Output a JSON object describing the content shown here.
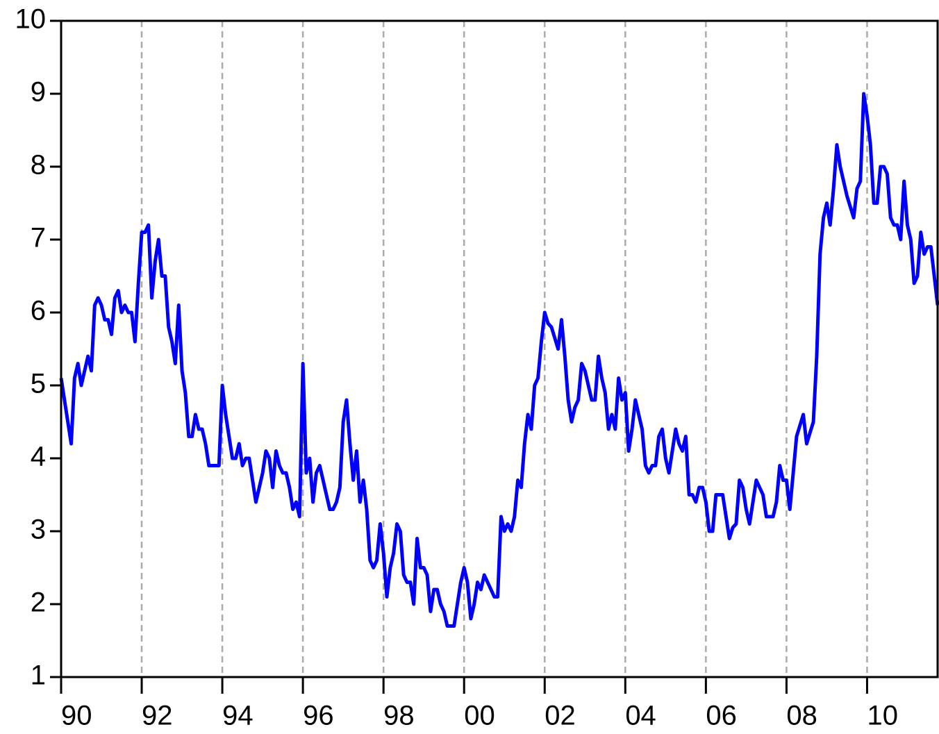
{
  "chart_data": {
    "type": "line",
    "color": "#0000ff",
    "grid": true,
    "xlim": [
      1990,
      2011.75
    ],
    "ylim": [
      1,
      10
    ],
    "yticks": [
      1,
      2,
      3,
      4,
      5,
      6,
      7,
      8,
      9,
      10
    ],
    "xticks": [
      {
        "value": 1990,
        "label": "90"
      },
      {
        "value": 1992,
        "label": "92"
      },
      {
        "value": 1994,
        "label": "94"
      },
      {
        "value": 1996,
        "label": "96"
      },
      {
        "value": 1998,
        "label": "98"
      },
      {
        "value": 2000,
        "label": "00"
      },
      {
        "value": 2002,
        "label": "02"
      },
      {
        "value": 2004,
        "label": "04"
      },
      {
        "value": 2006,
        "label": "06"
      },
      {
        "value": 2008,
        "label": "08"
      },
      {
        "value": 2010,
        "label": "10"
      }
    ],
    "x": [
      1990,
      1990.083,
      1990.167,
      1990.25,
      1990.333,
      1990.417,
      1990.5,
      1990.583,
      1990.667,
      1990.75,
      1990.833,
      1990.917,
      1991,
      1991.083,
      1991.167,
      1991.25,
      1991.333,
      1991.417,
      1991.5,
      1991.583,
      1991.667,
      1991.75,
      1991.833,
      1991.917,
      1992,
      1992.083,
      1992.167,
      1992.25,
      1992.333,
      1992.417,
      1992.5,
      1992.583,
      1992.667,
      1992.75,
      1992.833,
      1992.917,
      1993,
      1993.083,
      1993.167,
      1993.25,
      1993.333,
      1993.417,
      1993.5,
      1993.583,
      1993.667,
      1993.75,
      1993.833,
      1993.917,
      1994,
      1994.083,
      1994.167,
      1994.25,
      1994.333,
      1994.417,
      1994.5,
      1994.583,
      1994.667,
      1994.75,
      1994.833,
      1994.917,
      1995,
      1995.083,
      1995.167,
      1995.25,
      1995.333,
      1995.417,
      1995.5,
      1995.583,
      1995.667,
      1995.75,
      1995.833,
      1995.917,
      1996,
      1996.083,
      1996.167,
      1996.25,
      1996.333,
      1996.417,
      1996.5,
      1996.583,
      1996.667,
      1996.75,
      1996.833,
      1996.917,
      1997,
      1997.083,
      1997.167,
      1997.25,
      1997.333,
      1997.417,
      1997.5,
      1997.583,
      1997.667,
      1997.75,
      1997.833,
      1997.917,
      1998,
      1998.083,
      1998.167,
      1998.25,
      1998.333,
      1998.417,
      1998.5,
      1998.583,
      1998.667,
      1998.75,
      1998.833,
      1998.917,
      1999,
      1999.083,
      1999.167,
      1999.25,
      1999.333,
      1999.417,
      1999.5,
      1999.583,
      1999.667,
      1999.75,
      1999.833,
      1999.917,
      2000,
      2000.083,
      2000.167,
      2000.25,
      2000.333,
      2000.417,
      2000.5,
      2000.583,
      2000.667,
      2000.75,
      2000.833,
      2000.917,
      2001,
      2001.083,
      2001.167,
      2001.25,
      2001.333,
      2001.417,
      2001.5,
      2001.583,
      2001.667,
      2001.75,
      2001.833,
      2001.917,
      2002,
      2002.083,
      2002.167,
      2002.25,
      2002.333,
      2002.417,
      2002.5,
      2002.583,
      2002.667,
      2002.75,
      2002.833,
      2002.917,
      2003,
      2003.083,
      2003.167,
      2003.25,
      2003.333,
      2003.417,
      2003.5,
      2003.583,
      2003.667,
      2003.75,
      2003.833,
      2003.917,
      2004,
      2004.083,
      2004.167,
      2004.25,
      2004.333,
      2004.417,
      2004.5,
      2004.583,
      2004.667,
      2004.75,
      2004.833,
      2004.917,
      2005,
      2005.083,
      2005.167,
      2005.25,
      2005.333,
      2005.417,
      2005.5,
      2005.583,
      2005.667,
      2005.75,
      2005.833,
      2005.917,
      2006,
      2006.083,
      2006.167,
      2006.25,
      2006.333,
      2006.417,
      2006.5,
      2006.583,
      2006.667,
      2006.75,
      2006.833,
      2006.917,
      2007,
      2007.083,
      2007.167,
      2007.25,
      2007.333,
      2007.417,
      2007.5,
      2007.583,
      2007.667,
      2007.75,
      2007.833,
      2007.917,
      2008,
      2008.083,
      2008.167,
      2008.25,
      2008.333,
      2008.417,
      2008.5,
      2008.583,
      2008.667,
      2008.75,
      2008.833,
      2008.917,
      2009,
      2009.083,
      2009.167,
      2009.25,
      2009.333,
      2009.417,
      2009.5,
      2009.583,
      2009.667,
      2009.75,
      2009.833,
      2009.917,
      2010,
      2010.083,
      2010.167,
      2010.25,
      2010.333,
      2010.417,
      2010.5,
      2010.583,
      2010.667,
      2010.75,
      2010.833,
      2010.917,
      2011,
      2011.083,
      2011.167,
      2011.25,
      2011.333,
      2011.417,
      2011.5,
      2011.583,
      2011.667,
      2011.75
    ],
    "values": [
      5.1,
      4.8,
      4.5,
      4.2,
      5.1,
      5.3,
      5.0,
      5.2,
      5.4,
      5.2,
      6.1,
      6.2,
      6.1,
      5.9,
      5.9,
      5.7,
      6.2,
      6.3,
      6.0,
      6.1,
      6.0,
      6.0,
      5.6,
      6.4,
      7.1,
      7.1,
      7.2,
      6.2,
      6.7,
      7.0,
      6.5,
      6.5,
      5.8,
      5.6,
      5.3,
      6.1,
      5.2,
      4.9,
      4.3,
      4.3,
      4.6,
      4.4,
      4.4,
      4.2,
      3.9,
      3.9,
      3.9,
      3.9,
      5.0,
      4.6,
      4.3,
      4.0,
      4.0,
      4.2,
      3.9,
      4.0,
      4.0,
      3.7,
      3.4,
      3.6,
      3.8,
      4.1,
      4.0,
      3.6,
      4.1,
      3.9,
      3.8,
      3.8,
      3.6,
      3.3,
      3.4,
      3.2,
      5.3,
      3.8,
      4.0,
      3.4,
      3.8,
      3.9,
      3.7,
      3.5,
      3.3,
      3.3,
      3.4,
      3.6,
      4.5,
      4.8,
      4.2,
      3.7,
      4.1,
      3.4,
      3.7,
      3.3,
      2.6,
      2.5,
      2.6,
      3.1,
      2.7,
      2.1,
      2.5,
      2.7,
      3.1,
      3.0,
      2.4,
      2.3,
      2.3,
      2.0,
      2.9,
      2.5,
      2.5,
      2.4,
      1.9,
      2.2,
      2.2,
      2.0,
      1.9,
      1.7,
      1.7,
      1.7,
      2.0,
      2.3,
      2.5,
      2.3,
      1.8,
      2.0,
      2.3,
      2.2,
      2.4,
      2.3,
      2.2,
      2.1,
      2.1,
      3.2,
      3.0,
      3.1,
      3.0,
      3.2,
      3.7,
      3.6,
      4.2,
      4.6,
      4.4,
      5.0,
      5.1,
      5.6,
      6.0,
      5.85,
      5.8,
      5.65,
      5.5,
      5.9,
      5.4,
      4.8,
      4.5,
      4.7,
      4.8,
      5.3,
      5.2,
      5.0,
      4.8,
      4.8,
      5.4,
      5.1,
      4.9,
      4.4,
      4.6,
      4.4,
      5.1,
      4.8,
      4.9,
      4.1,
      4.4,
      4.8,
      4.6,
      4.4,
      3.9,
      3.8,
      3.9,
      3.9,
      4.3,
      4.4,
      4.0,
      3.8,
      4.1,
      4.4,
      4.2,
      4.1,
      4.3,
      3.5,
      3.5,
      3.4,
      3.6,
      3.6,
      3.4,
      3.0,
      3.0,
      3.5,
      3.5,
      3.5,
      3.2,
      2.9,
      3.05,
      3.1,
      3.7,
      3.6,
      3.3,
      3.1,
      3.4,
      3.7,
      3.6,
      3.5,
      3.2,
      3.2,
      3.2,
      3.4,
      3.9,
      3.7,
      3.7,
      3.3,
      3.8,
      4.3,
      4.45,
      4.6,
      4.2,
      4.35,
      4.5,
      5.4,
      6.8,
      7.3,
      7.5,
      7.2,
      7.7,
      8.3,
      8.0,
      7.8,
      7.6,
      7.45,
      7.3,
      7.7,
      7.8,
      9.0,
      8.7,
      8.3,
      7.5,
      7.5,
      8.0,
      8.0,
      7.9,
      7.3,
      7.2,
      7.2,
      7.0,
      7.8,
      7.2,
      7.0,
      6.4,
      6.5,
      7.1,
      6.8,
      6.9,
      6.9,
      6.5,
      6.1
    ]
  }
}
